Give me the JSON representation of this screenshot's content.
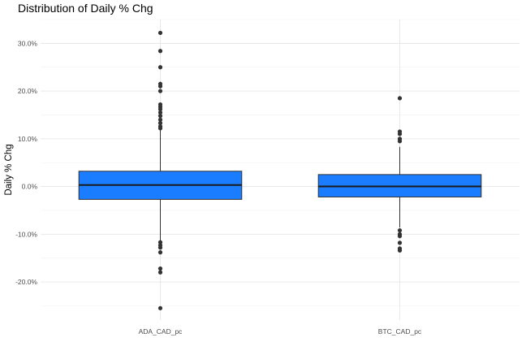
{
  "chart_data": {
    "type": "box",
    "title": "Distribution of Daily % Chg",
    "xlabel": "",
    "ylabel": "Daily % Chg",
    "ylim": [
      -0.28,
      0.35
    ],
    "y_ticks": [
      {
        "value": -0.2,
        "label": "-20.0%"
      },
      {
        "value": -0.1,
        "label": "-10.0%"
      },
      {
        "value": 0.0,
        "label": "0.0%"
      },
      {
        "value": 0.1,
        "label": "10.0%"
      },
      {
        "value": 0.2,
        "label": "20.0%"
      },
      {
        "value": 0.3,
        "label": "30.0%"
      }
    ],
    "grid": true,
    "fill_color": "#1a7dff",
    "categories": [
      "ADA_CAD_pc",
      "BTC_CAD_pc"
    ],
    "boxes": [
      {
        "category": "ADA_CAD_pc",
        "whisker_low": -0.114,
        "q1": -0.027,
        "median": 0.003,
        "q3": 0.032,
        "whisker_high": 0.118,
        "outliers": [
          0.322,
          0.284,
          0.25,
          0.215,
          0.21,
          0.2,
          0.172,
          0.167,
          0.162,
          0.155,
          0.148,
          0.14,
          0.133,
          0.126,
          0.122,
          -0.117,
          -0.123,
          -0.128,
          -0.138,
          -0.172,
          -0.18,
          -0.255
        ]
      },
      {
        "category": "BTC_CAD_pc",
        "whisker_low": -0.086,
        "q1": -0.022,
        "median": 0.0,
        "q3": 0.025,
        "whisker_high": 0.083,
        "outliers": [
          0.185,
          0.115,
          0.11,
          0.1,
          0.095,
          -0.092,
          -0.1,
          -0.104,
          -0.118,
          -0.13,
          -0.134
        ]
      }
    ]
  }
}
